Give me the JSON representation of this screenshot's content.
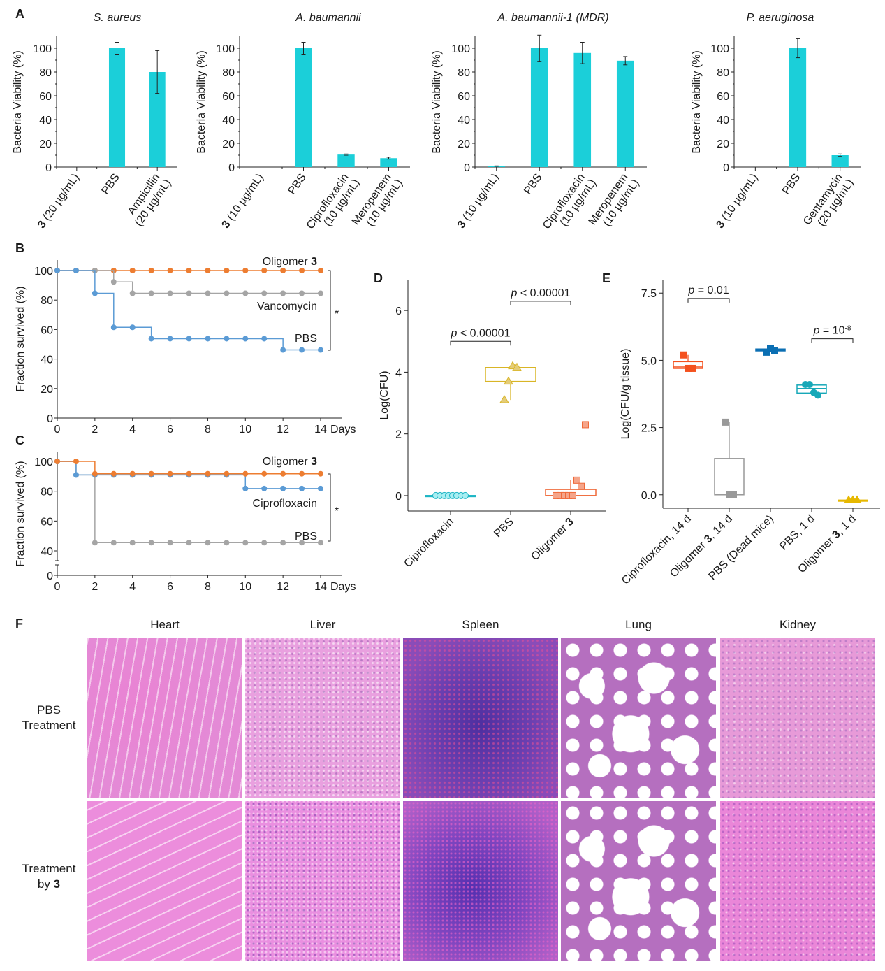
{
  "panel_letters": {
    "A": "A",
    "B": "B",
    "C": "C",
    "D": "D",
    "E": "E",
    "F": "F"
  },
  "colors": {
    "bar": "#1bcfd9",
    "orange": "#ed7d31",
    "gray": "#a5a5a5",
    "blue": "#5b9bd5",
    "d_cipro": "#1cb5c4",
    "d_pbs": "#d9b526",
    "d_olig": "#ef6a3a",
    "e_cipro": "#f4511e",
    "e_olig14": "#999999",
    "e_pbsdead": "#0b6fb3",
    "e_pbs1": "#17a8b8",
    "e_olig1": "#e6b800"
  },
  "chart_data": [
    {
      "id": "A1",
      "type": "bar",
      "title": "S. aureus",
      "ylabel": "Bacteria Viability (%)",
      "ylim": [
        0,
        110
      ],
      "yticks": [
        "0",
        "20",
        "40",
        "60",
        "80",
        "100"
      ],
      "categories": [
        {
          "bold": "3",
          "text": " (20 µg/mL)",
          "line2": ""
        },
        {
          "bold": "",
          "text": "PBS",
          "line2": ""
        },
        {
          "bold": "",
          "text": "Ampicillin",
          "line2": "(20 µg/mL)"
        }
      ],
      "values": [
        0,
        100,
        80
      ],
      "errors": [
        0,
        5,
        18
      ]
    },
    {
      "id": "A2",
      "type": "bar",
      "title": "A. baumannii",
      "ylabel": "Bacteria Viability (%)",
      "ylim": [
        0,
        110
      ],
      "yticks": [
        "0",
        "20",
        "40",
        "60",
        "80",
        "100"
      ],
      "categories": [
        {
          "bold": "3",
          "text": " (10 µg/mL)",
          "line2": ""
        },
        {
          "bold": "",
          "text": "PBS",
          "line2": ""
        },
        {
          "bold": "",
          "text": "Ciprofloxacin",
          "line2": "(10 µg/mL)"
        },
        {
          "bold": "",
          "text": "Meropenem",
          "line2": "(10 µg/mL)"
        }
      ],
      "values": [
        0,
        100,
        10.5,
        7.5
      ],
      "errors": [
        0,
        5,
        0.5,
        0.8
      ]
    },
    {
      "id": "A3",
      "type": "bar",
      "title": "A. baumannii-1 (MDR)",
      "ylabel": "Bacteria Viability (%)",
      "ylim": [
        0,
        110
      ],
      "yticks": [
        "0",
        "20",
        "40",
        "60",
        "80",
        "100"
      ],
      "categories": [
        {
          "bold": "3",
          "text": " (10 µg/mL)",
          "line2": ""
        },
        {
          "bold": "",
          "text": "PBS",
          "line2": ""
        },
        {
          "bold": "",
          "text": "Ciprofloxacin",
          "line2": "(10 µg/mL)"
        },
        {
          "bold": "",
          "text": "Meropenem",
          "line2": "(10 µg/mL)"
        }
      ],
      "values": [
        0.8,
        100,
        96,
        89.5
      ],
      "errors": [
        0.2,
        11,
        9,
        3.5
      ]
    },
    {
      "id": "A4",
      "type": "bar",
      "title": "P. aeruginosa",
      "ylabel": "Bacteria Viability (%)",
      "ylim": [
        0,
        110
      ],
      "yticks": [
        "0",
        "20",
        "40",
        "60",
        "80",
        "100"
      ],
      "categories": [
        {
          "bold": "3",
          "text": " (10 µg/mL)",
          "line2": ""
        },
        {
          "bold": "",
          "text": "PBS",
          "line2": ""
        },
        {
          "bold": "",
          "text": "Gentamycin",
          "line2": "(20 µg/mL)"
        }
      ],
      "values": [
        0,
        100,
        10
      ],
      "errors": [
        0,
        8,
        1
      ]
    },
    {
      "id": "B",
      "type": "line",
      "step": true,
      "ylabel": "Fraction survived (%)",
      "xlabel": "Days",
      "xlim": [
        0,
        14
      ],
      "ylim": [
        0,
        100
      ],
      "xticks": [
        "0",
        "2",
        "4",
        "6",
        "8",
        "10",
        "12",
        "14"
      ],
      "yticks": [
        "0",
        "20",
        "40",
        "60",
        "80",
        "100"
      ],
      "x": [
        0,
        1,
        2,
        3,
        4,
        5,
        6,
        7,
        8,
        9,
        10,
        11,
        12,
        13,
        14
      ],
      "series": [
        {
          "name": "Oligomer 3",
          "label_plain": "Oligomer ",
          "label_bold": "3",
          "color_key": "orange",
          "values": [
            100,
            100,
            100,
            100,
            100,
            100,
            100,
            100,
            100,
            100,
            100,
            100,
            100,
            100,
            100
          ]
        },
        {
          "name": "Vancomycin",
          "label_plain": "Vancomycin",
          "label_bold": "",
          "color_key": "gray",
          "values": [
            100,
            100,
            100,
            92.3,
            84.6,
            84.6,
            84.6,
            84.6,
            84.6,
            84.6,
            84.6,
            84.6,
            84.6,
            84.6,
            84.6
          ]
        },
        {
          "name": "PBS",
          "label_plain": "PBS",
          "label_bold": "",
          "color_key": "blue",
          "values": [
            100,
            100,
            84.6,
            61.5,
            61.5,
            53.8,
            53.8,
            53.8,
            53.8,
            53.8,
            53.8,
            53.8,
            46.2,
            46.2,
            46.2
          ]
        }
      ],
      "significance": "*"
    },
    {
      "id": "C",
      "type": "line",
      "step": true,
      "axis_break": true,
      "ylabel": "Fraction survived (%)",
      "xlabel": "Days",
      "xlim": [
        0,
        14
      ],
      "ylim": [
        0,
        100
      ],
      "xticks": [
        "0",
        "2",
        "4",
        "6",
        "8",
        "10",
        "12",
        "14"
      ],
      "yticks": [
        "0",
        "40",
        "60",
        "80",
        "100"
      ],
      "x": [
        0,
        1,
        2,
        3,
        4,
        5,
        6,
        7,
        8,
        9,
        10,
        11,
        12,
        13,
        14
      ],
      "series": [
        {
          "name": "PBS",
          "label_plain": "PBS",
          "label_bold": "",
          "color_key": "gray",
          "values": [
            100,
            90.9,
            45.5,
            45.5,
            45.5,
            45.5,
            45.5,
            45.5,
            45.5,
            45.5,
            45.5,
            45.5,
            45.5,
            45.5,
            45.5
          ]
        },
        {
          "name": "Ciprofloxacin",
          "label_plain": "Ciprofloxacin",
          "label_bold": "",
          "color_key": "blue",
          "values": [
            100,
            90.9,
            90.9,
            90.9,
            90.9,
            90.9,
            90.9,
            90.9,
            90.9,
            90.9,
            81.8,
            81.8,
            81.8,
            81.8,
            81.8
          ]
        },
        {
          "name": "Oligomer 3",
          "label_plain": "Oligomer ",
          "label_bold": "3",
          "color_key": "orange",
          "values": [
            100,
            100,
            91.7,
            91.7,
            91.7,
            91.7,
            91.7,
            91.7,
            91.7,
            91.7,
            91.7,
            91.7,
            91.7,
            91.7,
            91.7
          ]
        }
      ],
      "significance": "*"
    },
    {
      "id": "D",
      "type": "scatter",
      "subtype": "box",
      "ylabel": "Log(CFU)",
      "ylim": [
        -0.5,
        7
      ],
      "yticks": [
        "0",
        "2",
        "4",
        "6"
      ],
      "categories": [
        {
          "plain": "Ciprofloxacin",
          "bold": ""
        },
        {
          "plain": "PBS",
          "bold": ""
        },
        {
          "plain": "Oligomer ",
          "bold": "3"
        }
      ],
      "groups": [
        {
          "marker": "circle",
          "color_key": "d_cipro",
          "points": [
            0,
            0,
            0,
            0,
            0,
            0,
            0,
            0
          ],
          "box": [
            0,
            0,
            0,
            0,
            0
          ]
        },
        {
          "marker": "triangle",
          "color_key": "d_pbs",
          "points": [
            3.1,
            3.7,
            4.2,
            4.15
          ],
          "box": [
            3.1,
            3.7,
            4.15,
            4.15,
            4.2
          ]
        },
        {
          "marker": "square",
          "color_key": "d_olig",
          "points": [
            0,
            0,
            0,
            0,
            0,
            0.5,
            0.3,
            2.3
          ],
          "box": [
            0,
            0,
            0,
            0.2,
            0.5
          ]
        }
      ],
      "annotations": [
        {
          "text": "p < 0.00001",
          "from": 0,
          "to": 1,
          "y": 5.0
        },
        {
          "text": "p < 0.00001",
          "from": 1,
          "to": 2,
          "y": 6.3
        }
      ]
    },
    {
      "id": "E",
      "type": "scatter",
      "subtype": "box",
      "ylabel": "Log(CFU/g tissue)",
      "ylim": [
        -0.5,
        8
      ],
      "yticks": [
        "0.0",
        "2.5",
        "5.0",
        "7.5"
      ],
      "categories": [
        {
          "plain": "Ciprofloxacin, 14 d",
          "bold": "",
          "suffix": ""
        },
        {
          "plain": "Oligomer ",
          "bold": "3",
          "suffix": ", 14 d"
        },
        {
          "plain": "PBS (Dead mice)",
          "bold": "",
          "suffix": ""
        },
        {
          "plain": "PBS, 1 d",
          "bold": "",
          "suffix": ""
        },
        {
          "plain": "Oligomer ",
          "bold": "3",
          "suffix": ", 1 d"
        }
      ],
      "groups": [
        {
          "marker": "square",
          "color_key": "e_cipro",
          "points": [
            5.2,
            4.7,
            4.7
          ],
          "box": [
            4.7,
            4.7,
            4.75,
            4.95,
            5.2
          ]
        },
        {
          "marker": "square",
          "color_key": "e_olig14",
          "points": [
            2.7,
            0,
            0
          ],
          "box": [
            0,
            0,
            0,
            1.35,
            2.7
          ]
        },
        {
          "marker": "square",
          "color_key": "e_pbsdead",
          "points": [
            5.3,
            5.45,
            5.35
          ],
          "box": [
            5.3,
            5.35,
            5.38,
            5.42,
            5.45
          ]
        },
        {
          "marker": "circle",
          "color_key": "e_pbs1",
          "points": [
            4.1,
            4.1,
            3.8,
            3.7
          ],
          "box": [
            3.7,
            3.78,
            3.95,
            4.08,
            4.1
          ]
        },
        {
          "marker": "triangle",
          "color_key": "e_olig1",
          "points": [
            -0.2,
            -0.2,
            -0.2
          ],
          "box": [
            -0.2,
            -0.2,
            -0.2,
            -0.2,
            -0.2
          ]
        }
      ],
      "annotations": [
        {
          "text": "p = 0.01",
          "exp": "",
          "from": 0,
          "to": 1,
          "y": 7.3
        },
        {
          "text": "p = 10",
          "exp": "-8",
          "from": 3,
          "to": 4,
          "y": 5.8
        }
      ]
    }
  ],
  "panel_f": {
    "columns": [
      "Heart",
      "Liver",
      "Spleen",
      "Lung",
      "Kidney"
    ],
    "rows": [
      {
        "line1": "PBS",
        "line2": "Treatment",
        "bold": ""
      },
      {
        "line1": "Treatment",
        "line2": "by ",
        "bold": "3"
      }
    ]
  }
}
